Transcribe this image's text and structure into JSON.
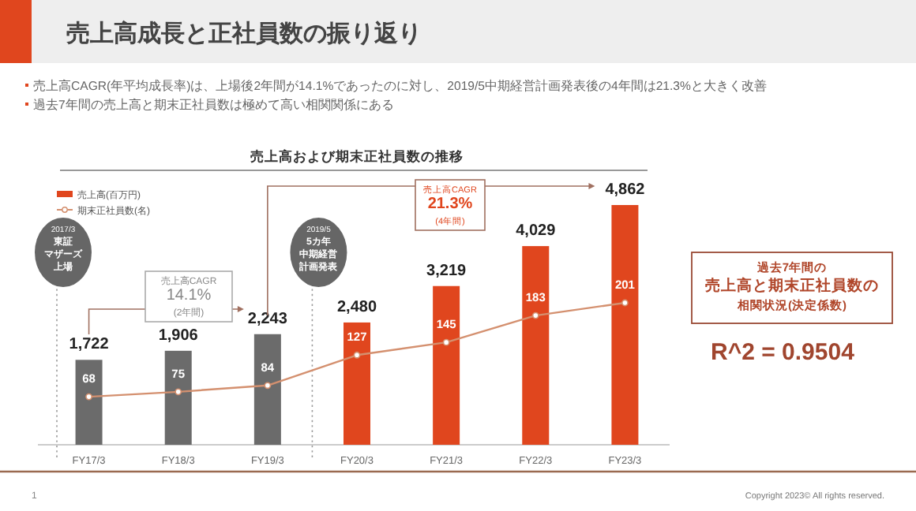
{
  "chart_data": {
    "type": "bar",
    "title": "売上高成長と正社員数の振り返り",
    "subtitle": "売上高および期末正社員数の推移",
    "categories": [
      "FY17/3",
      "FY18/3",
      "FY19/3",
      "FY20/3",
      "FY21/3",
      "FY22/3",
      "FY23/3"
    ],
    "series": [
      {
        "name": "売上高(百万円)",
        "color": "#e0461e",
        "colors": [
          "#6b6b6b",
          "#6b6b6b",
          "#6b6b6b",
          "#e0461e",
          "#e0461e",
          "#e0461e",
          "#e0461e"
        ],
        "values": [
          1722,
          1906,
          2243,
          2480,
          3219,
          4029,
          4862
        ],
        "value_labels": [
          "1,722",
          "1,906",
          "2,243",
          "2,480",
          "3,219",
          "4,029",
          "4,862"
        ]
      },
      {
        "name": "期末正社員数(名)",
        "type": "line",
        "axis": "y2",
        "color": "#d4906f",
        "values": [
          68,
          75,
          84,
          127,
          145,
          183,
          201
        ]
      }
    ],
    "marker": "circle",
    "data_labels": true,
    "legend": "top left",
    "annotations": [
      "売上高CAGR(年平均成長率)は、上場後2年間が14.1%であったのに対し、2019/5中期経営計画発表後の4年間は21.3%と大きく改善",
      "過去7年間の売上高と期末正社員数は極めて高い相関関係にある",
      "売上高CAGR\n14.1%\n(2年間)",
      "売上高CAGR\n21.3%\n(4年間)",
      "過去7年間の売上高と期末正社員数の相関状況(決定係数)",
      "R^2 = 0.9504",
      "1",
      "Copyright 2023© All rights reserved.",
      "2017/3東証マザーズ上場",
      "2019/55カ年中期経営計画発表"
    ]
  }
}
